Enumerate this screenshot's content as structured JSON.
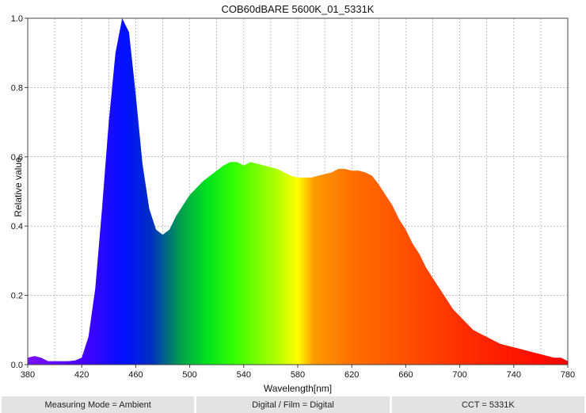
{
  "chart_data": {
    "type": "area",
    "title": "COB60dBARE 5600K_01_5331K",
    "xlabel": "Wavelength[nm]",
    "ylabel": "Relative value",
    "xlim": [
      380,
      780
    ],
    "ylim": [
      0,
      1
    ],
    "xticks": [
      380,
      420,
      460,
      500,
      540,
      580,
      620,
      660,
      700,
      740,
      780
    ],
    "yticks": [
      "0.0",
      "0.2",
      "0.4",
      "0.6",
      "0.8",
      "1.0"
    ],
    "grid": true,
    "fill": "visible-spectrum gradient",
    "x": [
      380,
      385,
      390,
      395,
      400,
      410,
      415,
      420,
      425,
      430,
      435,
      440,
      445,
      450,
      455,
      460,
      465,
      470,
      475,
      480,
      485,
      490,
      495,
      500,
      505,
      510,
      515,
      520,
      525,
      530,
      535,
      540,
      545,
      550,
      555,
      560,
      565,
      570,
      575,
      580,
      585,
      590,
      595,
      600,
      605,
      610,
      615,
      620,
      625,
      630,
      635,
      640,
      645,
      650,
      655,
      660,
      665,
      670,
      675,
      680,
      685,
      690,
      695,
      700,
      705,
      710,
      715,
      720,
      725,
      730,
      735,
      740,
      745,
      750,
      755,
      760,
      765,
      770,
      775,
      780
    ],
    "y": [
      0.02,
      0.025,
      0.02,
      0.01,
      0.01,
      0.01,
      0.012,
      0.02,
      0.08,
      0.22,
      0.45,
      0.7,
      0.9,
      1.0,
      0.96,
      0.78,
      0.58,
      0.45,
      0.39,
      0.375,
      0.39,
      0.43,
      0.46,
      0.49,
      0.51,
      0.53,
      0.545,
      0.56,
      0.575,
      0.585,
      0.585,
      0.575,
      0.585,
      0.58,
      0.575,
      0.57,
      0.565,
      0.555,
      0.545,
      0.54,
      0.54,
      0.54,
      0.545,
      0.55,
      0.555,
      0.565,
      0.565,
      0.56,
      0.56,
      0.555,
      0.545,
      0.52,
      0.49,
      0.46,
      0.42,
      0.39,
      0.35,
      0.32,
      0.28,
      0.25,
      0.22,
      0.19,
      0.16,
      0.14,
      0.12,
      0.1,
      0.09,
      0.08,
      0.07,
      0.06,
      0.055,
      0.05,
      0.045,
      0.04,
      0.035,
      0.03,
      0.025,
      0.02,
      0.02,
      0.01
    ]
  },
  "footer": {
    "measuring_mode": "Measuring Mode = Ambient",
    "digital_film": "Digital / Film = Digital",
    "cct": "CCT = 5331K"
  }
}
